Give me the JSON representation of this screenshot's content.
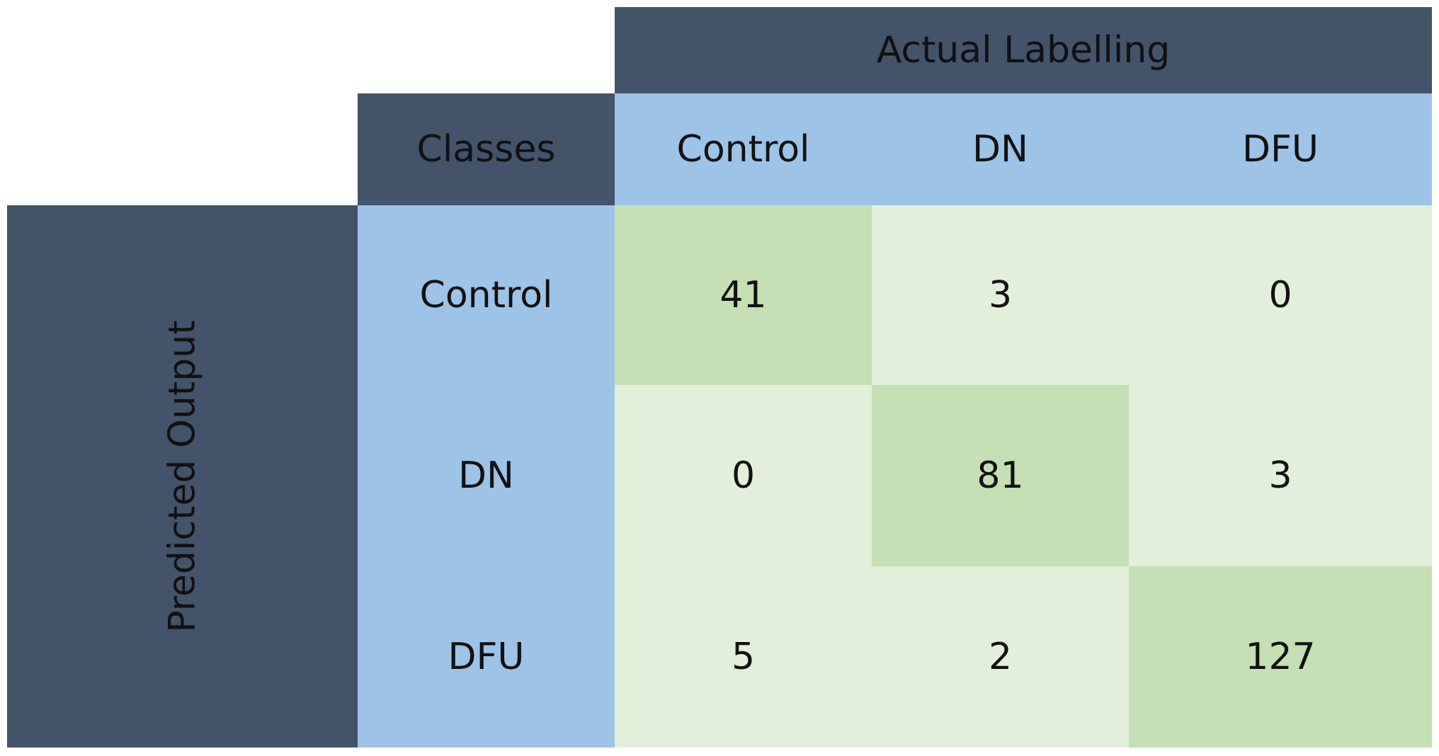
{
  "table": {
    "top_header": "Actual Labelling",
    "corner": "Classes",
    "side_header": "Predicted Output",
    "columns": [
      "Control",
      "DN",
      "DFU"
    ],
    "rows": [
      {
        "label": "Control",
        "values": [
          41,
          3,
          0
        ]
      },
      {
        "label": "DN",
        "values": [
          0,
          81,
          3
        ]
      },
      {
        "label": "DFU",
        "values": [
          5,
          2,
          127
        ]
      }
    ]
  }
}
